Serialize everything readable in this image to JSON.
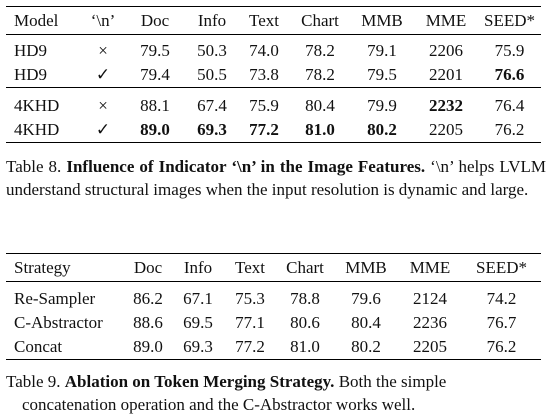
{
  "table8": {
    "headers": [
      "Model",
      "‘\\n’",
      "Doc",
      "Info",
      "Text",
      "Chart",
      "MMB",
      "MME",
      "SEED*"
    ],
    "group1": [
      {
        "model": "HD9",
        "ind": "×",
        "vals": [
          "79.5",
          "50.3",
          "74.0",
          "78.2",
          "79.1",
          "2206",
          "75.9"
        ]
      },
      {
        "model": "HD9",
        "ind": "✓",
        "vals": [
          "79.4",
          "50.5",
          "73.8",
          "78.2",
          "79.5",
          "2201",
          "76.6"
        ]
      }
    ],
    "group2": [
      {
        "model": "4KHD",
        "ind": "×",
        "vals": [
          "88.1",
          "67.4",
          "75.9",
          "80.4",
          "79.9",
          "2232",
          "76.4"
        ]
      },
      {
        "model": "4KHD",
        "ind": "✓",
        "vals": [
          "89.0",
          "69.3",
          "77.2",
          "81.0",
          "80.2",
          "2205",
          "76.2"
        ]
      }
    ],
    "caption": {
      "label": "Table 8.",
      "title": "Influence of Indicator ‘\\n’ in the Image Features.",
      "body": "‘\\n’ helps LVLM understand structural images when the input resolution is dynamic and large."
    }
  },
  "table9": {
    "headers": [
      "Strategy",
      "Doc",
      "Info",
      "Text",
      "Chart",
      "MMB",
      "MME",
      "SEED*"
    ],
    "rows": [
      {
        "strategy": "Re-Sampler",
        "vals": [
          "86.2",
          "67.1",
          "75.3",
          "78.8",
          "79.6",
          "2124",
          "74.2"
        ]
      },
      {
        "strategy": "C-Abstractor",
        "vals": [
          "88.6",
          "69.5",
          "77.1",
          "80.6",
          "80.4",
          "2236",
          "76.7"
        ]
      },
      {
        "strategy": "Concat",
        "vals": [
          "89.0",
          "69.3",
          "77.2",
          "81.0",
          "80.2",
          "2205",
          "76.2"
        ]
      }
    ],
    "caption": {
      "label": "Table 9.",
      "title": "Ablation on Token Merging Strategy.",
      "body_line1": "Both the simple",
      "body_line2": "concatenation operation and the C-Abstractor works well."
    }
  }
}
